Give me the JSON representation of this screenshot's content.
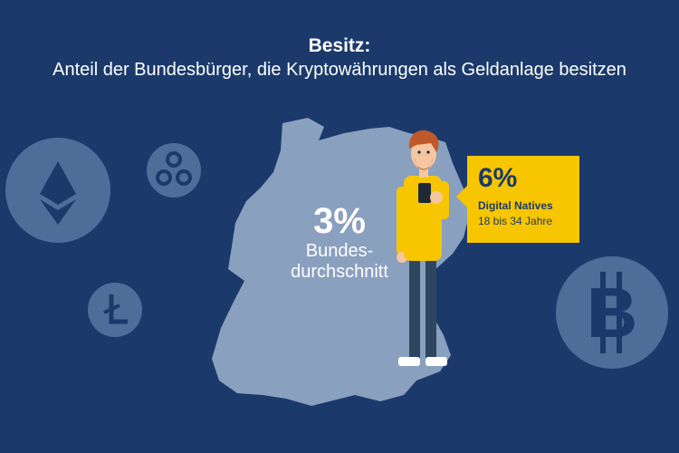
{
  "header": {
    "title": "Besitz:",
    "subtitle": "Anteil der Bundesbürger, die Kryptowährungen als Geldanlage besitzen"
  },
  "national_average": {
    "value": "3%",
    "label_line1": "Bundes-",
    "label_line2": "durchschnitt"
  },
  "digital_natives": {
    "value": "6%",
    "label": "Digital Natives",
    "age_range": "18 bis 34 Jahre"
  },
  "icons": [
    "ethereum-icon",
    "ripple-icon",
    "litecoin-icon",
    "bitcoin-icon"
  ],
  "colors": {
    "background": "#1b3a6b",
    "map": "#8aa0bf",
    "coin": "#4f6d99",
    "callout": "#f7c600",
    "text": "#ffffff"
  }
}
